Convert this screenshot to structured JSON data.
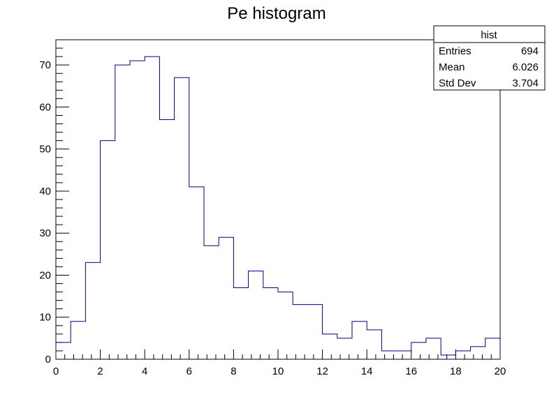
{
  "chart_data": {
    "type": "bar",
    "title": "Pe histogram",
    "xlabel": "",
    "ylabel": "",
    "xlim": [
      0,
      20
    ],
    "ylim": [
      0,
      76
    ],
    "bin_width": 0.6667,
    "bin_edges": [
      0,
      0.6667,
      1.3333,
      2,
      2.6667,
      3.3333,
      4,
      4.6667,
      5.3333,
      6,
      6.6667,
      7.3333,
      8,
      8.6667,
      9.3333,
      10,
      10.6667,
      11.3333,
      12,
      12.6667,
      13.3333,
      14,
      14.6667,
      15.3333,
      16,
      16.6667,
      17.3333,
      18,
      18.6667,
      19.3333,
      20
    ],
    "values": [
      4,
      9,
      23,
      52,
      70,
      71,
      72,
      57,
      67,
      41,
      27,
      29,
      17,
      21,
      17,
      16,
      13,
      13,
      6,
      5,
      9,
      7,
      2,
      2,
      4,
      5,
      1,
      2,
      3,
      5
    ],
    "x_ticks": [
      "0",
      "2",
      "4",
      "6",
      "8",
      "10",
      "12",
      "14",
      "16",
      "18",
      "20"
    ],
    "y_ticks": [
      "0",
      "10",
      "20",
      "30",
      "40",
      "50",
      "60",
      "70"
    ],
    "line_color": "#000080",
    "grid": false,
    "legend": "none"
  },
  "stats_box": {
    "title": "hist",
    "rows": [
      {
        "label": "Entries",
        "value": "694"
      },
      {
        "label": "Mean",
        "value": "6.026"
      },
      {
        "label": "Std Dev",
        "value": "3.704"
      }
    ]
  }
}
